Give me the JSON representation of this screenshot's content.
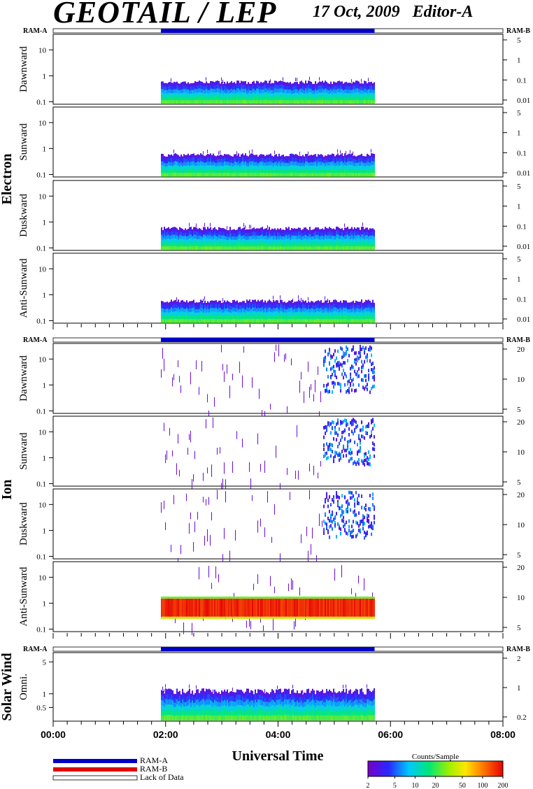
{
  "header": {
    "title": "GEOTAIL / LEP",
    "date": "17 Oct, 2009",
    "editor": "Editor-A"
  },
  "ram_labels": {
    "a": "RAM-A",
    "b": "RAM-B"
  },
  "groups": [
    {
      "name": "Electron",
      "panels": [
        "Dawnward",
        "Sunward",
        "Duskward",
        "Anti-Sunward"
      ]
    },
    {
      "name": "Ion",
      "panels": [
        "Dawnward",
        "Sunward",
        "Duskward",
        "Anti-Sunward"
      ]
    },
    {
      "name": "Solar Wind",
      "panels": [
        "Omni."
      ]
    }
  ],
  "axes": {
    "electron_left_ticks": [
      "10",
      "1",
      "0.1"
    ],
    "electron_right_ticks": [
      "5",
      "1",
      "0.1",
      "0.01"
    ],
    "ion_left_ticks": [
      "10",
      "1",
      "0.1"
    ],
    "ion_right_ticks": [
      "20",
      "10",
      "5"
    ],
    "sw_left_ticks": [
      "5",
      "1",
      "0.5"
    ],
    "sw_right_ticks": [
      "2",
      "1",
      "0.2"
    ],
    "x_ticks": [
      "00:00",
      "02:00",
      "04:00",
      "06:00",
      "08:00"
    ],
    "xlabel": "Universal Time"
  },
  "legend": {
    "ram_a": "RAM-A",
    "ram_b": "RAM-B",
    "lack": "Lack of Data"
  },
  "colorbar": {
    "title": "Counts/Sample",
    "ticks": [
      "2",
      "5",
      "10",
      "20",
      "50",
      "100",
      "200"
    ]
  },
  "colors": {
    "ram_a": "#0000c8",
    "ram_b": "#e00000"
  },
  "chart_data": {
    "type": "heatmap",
    "title": "GEOTAIL / LEP",
    "xlabel": "Universal Time",
    "x_range_ut_hours": [
      0,
      8
    ],
    "data_coverage_ut": [
      "01:55",
      "05:43"
    ],
    "ram_a_coverage_ut": [
      "01:55",
      "05:43"
    ],
    "colorbar_range_counts": [
      2,
      200
    ],
    "colorbar_scale": "log",
    "panels": [
      {
        "group": "Electron",
        "direction": "Dawnward",
        "ylabel_log_range": [
          0.08,
          40
        ],
        "main_level": 0.3
      },
      {
        "group": "Electron",
        "direction": "Sunward",
        "ylabel_log_range": [
          0.08,
          40
        ],
        "main_level": 0.3
      },
      {
        "group": "Electron",
        "direction": "Duskward",
        "ylabel_log_range": [
          0.08,
          40
        ],
        "main_level": 0.3
      },
      {
        "group": "Electron",
        "direction": "Anti-Sunward",
        "ylabel_log_range": [
          0.08,
          40
        ],
        "main_level": 0.3
      },
      {
        "group": "Ion",
        "direction": "Dawnward",
        "ylabel_log_range": [
          0.08,
          40
        ],
        "enhanced_after_ut": "04:30"
      },
      {
        "group": "Ion",
        "direction": "Sunward",
        "ylabel_log_range": [
          0.08,
          40
        ],
        "enhanced_after_ut": "04:30"
      },
      {
        "group": "Ion",
        "direction": "Duskward",
        "ylabel_log_range": [
          0.08,
          40
        ],
        "enhanced_after_ut": "04:30"
      },
      {
        "group": "Ion",
        "direction": "Anti-Sunward",
        "ylabel_log_range": [
          0.08,
          40
        ],
        "intense_band": [
          0.3,
          1.5
        ]
      },
      {
        "group": "Solar Wind",
        "direction": "Omni.",
        "ylabel_log_range": [
          0.25,
          8
        ],
        "main_level": 0.6
      }
    ]
  }
}
